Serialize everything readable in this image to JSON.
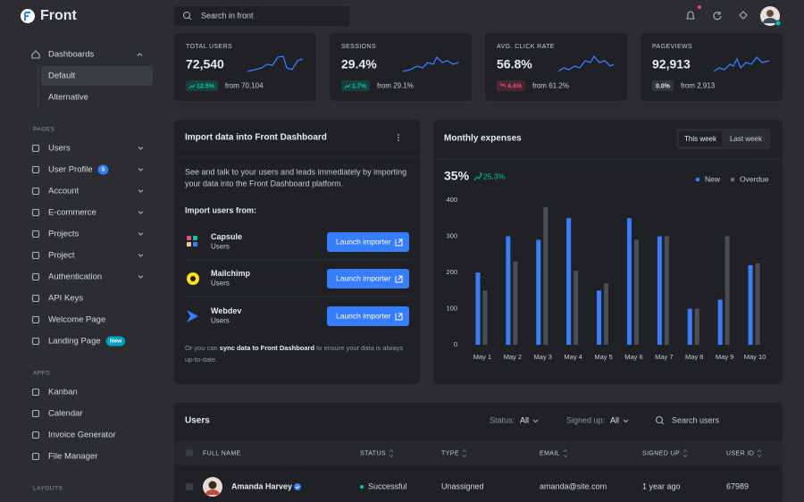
{
  "brand": "Front",
  "search": "Search in front",
  "nav": {
    "dashboards": "Dashboards",
    "dashboard_items": [
      "Default",
      "Alternative"
    ],
    "sections": [
      {
        "title": "PAGES",
        "items": [
          {
            "label": "Users"
          },
          {
            "label": "User Profile",
            "badge": "5",
            "badge_color": "#377dff"
          },
          {
            "label": "Account"
          },
          {
            "label": "E-commerce"
          },
          {
            "label": "Projects"
          },
          {
            "label": "Project"
          },
          {
            "label": "Authentication"
          },
          {
            "label": "API Keys"
          },
          {
            "label": "Welcome Page"
          },
          {
            "label": "Landing Page",
            "badge": "New",
            "badge_color": "#00a3c4"
          }
        ]
      },
      {
        "title": "APPS",
        "items": [
          {
            "label": "Kanban"
          },
          {
            "label": "Calendar"
          },
          {
            "label": "Invoice Generator"
          },
          {
            "label": "File Manager"
          }
        ]
      },
      {
        "title": "LAYOUTS",
        "items": []
      }
    ]
  },
  "stats": [
    {
      "label": "TOTAL USERS",
      "value": "72,540",
      "change": "12.5%",
      "from": "from 70,104",
      "badge_color": "#00c9a7"
    },
    {
      "label": "SESSIONS",
      "value": "29.4%",
      "change": "1.7%",
      "from": "from 29.1%",
      "badge_color": "#00c9a7"
    },
    {
      "label": "AVG. CLICK RATE",
      "value": "56.8%",
      "change": "4.4%",
      "from": "from 61.2%",
      "badge_color": "#ed4c78"
    },
    {
      "label": "PAGEVIEWS",
      "value": "92,913",
      "change": "0.0%",
      "from": "from 2,913",
      "badge_color": "#8c98a4"
    }
  ],
  "import": {
    "title": "Import data into Front Dashboard",
    "description": [
      "See and talk to your users and leads immediately by importing",
      "your data into the Front Dashboard platform."
    ],
    "subtitle": "Import users from:",
    "importers": [
      {
        "name": "Capsule",
        "type": "Users",
        "button": "Launch importer"
      },
      {
        "name": "Mailchimp",
        "type": "Users",
        "button": "Launch importer"
      },
      {
        "name": "Webdev",
        "type": "Users",
        "button": "Launch importer"
      }
    ],
    "footer": [
      "Or you can ",
      "sync data to Front Dashboard",
      " to ensure your data is always",
      "up-to-date."
    ]
  },
  "expenses": {
    "title": "Monthly expenses",
    "tabs": [
      "This week",
      "Last week"
    ],
    "total": "35%",
    "change": "25.3%",
    "chart": {
      "type": "bar",
      "categories": [
        "May 1",
        "May 2",
        "May 3",
        "May 4",
        "May 5",
        "May 6",
        "May 7",
        "May 8",
        "May 9",
        "May 10"
      ],
      "series": [
        {
          "name": "New",
          "color": "#377dff",
          "values": [
            200,
            300,
            290,
            350,
            150,
            350,
            300,
            100,
            125,
            220
          ]
        },
        {
          "name": "Overdue",
          "color": "#4b4e53",
          "values": [
            150,
            230,
            380,
            205,
            170,
            290,
            300,
            100,
            300,
            225
          ]
        }
      ],
      "ylim": [
        0,
        400
      ],
      "yticks": [
        0,
        100,
        200,
        300,
        400
      ],
      "grid": false,
      "legend": "top-right"
    }
  },
  "users": {
    "title": "Users",
    "filters": [
      {
        "label": "Status:",
        "value": "All"
      },
      {
        "label": "Signed up:",
        "value": "All"
      }
    ],
    "search": "Search users",
    "columns": [
      "FULL NAME",
      "STATUS",
      "TYPE",
      "EMAIL",
      "SIGNED UP",
      "USER ID"
    ],
    "rows": [
      {
        "name": "Amanda Harvey",
        "status": "Successful",
        "type": "Unassigned",
        "email": "amanda@site.com",
        "signed_up": "1 year ago",
        "user_id": 67989
      }
    ]
  }
}
